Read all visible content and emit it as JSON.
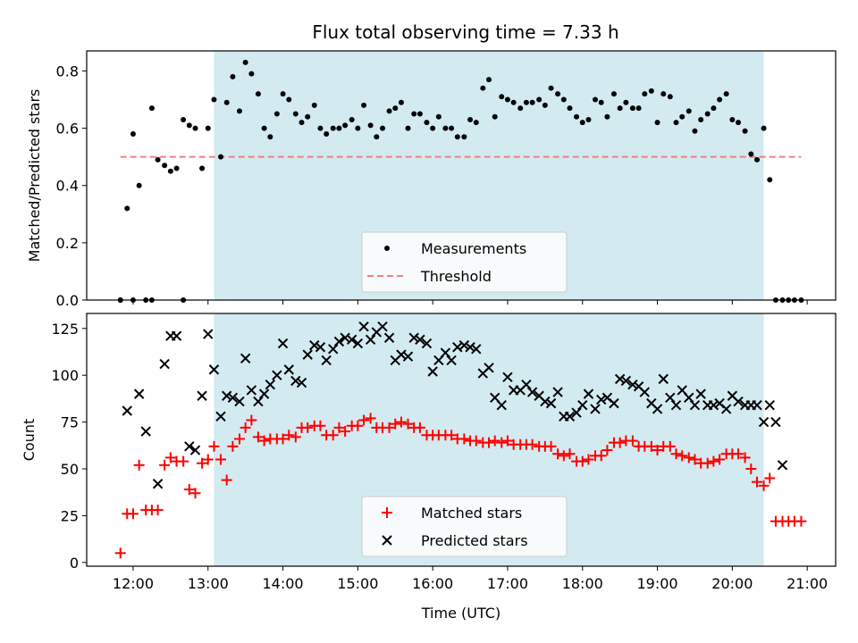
{
  "chart_data": [
    {
      "type": "scatter",
      "title": "Flux total observing time = 7.33 h",
      "ylabel": "Matched/Predicted stars",
      "xlabel": "",
      "xlim_hours": [
        11.38,
        21.38
      ],
      "ylim": [
        0,
        0.87
      ],
      "yticks": [
        0,
        0.2,
        0.4,
        0.6,
        0.8
      ],
      "ytick_labels": [
        "0.0",
        "0.2",
        "0.4",
        "0.6",
        "0.8"
      ],
      "shaded_region_hours": [
        13.08,
        20.42
      ],
      "shaded_color": "#d4eaf1",
      "legend_position": "lower center",
      "series": [
        {
          "name": "Measurements",
          "marker": "dot",
          "color": "#000000",
          "x": [
            11.83,
            11.92,
            12.0,
            12.08,
            12.17,
            12.25,
            12.33,
            12.42,
            12.5,
            12.58,
            12.67,
            12.75,
            12.83,
            12.92,
            13.0,
            13.08,
            13.17,
            13.25,
            13.33,
            13.42,
            13.5,
            13.58,
            13.67,
            13.75,
            13.83,
            13.92,
            14.0,
            14.08,
            14.17,
            14.25,
            14.33,
            14.42,
            14.5,
            14.58,
            14.67,
            14.75,
            14.83,
            14.92,
            15.0,
            15.08,
            15.17,
            15.25,
            15.33,
            15.42,
            15.5,
            15.58,
            15.67,
            15.75,
            15.83,
            15.92,
            16.0,
            16.08,
            16.17,
            16.25,
            16.33,
            16.42,
            16.5,
            16.58,
            16.67,
            16.75,
            16.83,
            16.92,
            17.0,
            17.08,
            17.17,
            17.25,
            17.33,
            17.42,
            17.5,
            17.58,
            17.67,
            17.75,
            17.83,
            17.92,
            18.0,
            18.08,
            18.17,
            18.25,
            18.33,
            18.42,
            18.5,
            18.58,
            18.67,
            18.75,
            18.83,
            18.92,
            19.0,
            19.08,
            19.17,
            19.25,
            19.33,
            19.42,
            19.5,
            19.58,
            19.67,
            19.75,
            19.83,
            19.92,
            20.0,
            20.08,
            20.17,
            20.25,
            20.33,
            20.42,
            20.5,
            20.58,
            20.67,
            20.75,
            20.83,
            20.92,
            11.83,
            12.0,
            12.25,
            12.67
          ],
          "y": [
            0.0,
            0.32,
            0.58,
            0.4,
            0.0,
            0.67,
            0.49,
            0.47,
            0.45,
            0.46,
            0.63,
            0.61,
            0.6,
            0.46,
            0.6,
            0.7,
            0.5,
            0.69,
            0.78,
            0.66,
            0.83,
            0.79,
            0.72,
            0.6,
            0.57,
            0.65,
            0.72,
            0.7,
            0.65,
            0.62,
            0.64,
            0.68,
            0.6,
            0.58,
            0.6,
            0.6,
            0.61,
            0.63,
            0.6,
            0.68,
            0.61,
            0.57,
            0.6,
            0.66,
            0.67,
            0.69,
            0.6,
            0.65,
            0.65,
            0.62,
            0.6,
            0.64,
            0.6,
            0.6,
            0.57,
            0.57,
            0.63,
            0.62,
            0.74,
            0.77,
            0.64,
            0.71,
            0.7,
            0.69,
            0.67,
            0.69,
            0.69,
            0.7,
            0.68,
            0.74,
            0.72,
            0.7,
            0.67,
            0.64,
            0.62,
            0.63,
            0.7,
            0.69,
            0.64,
            0.72,
            0.67,
            0.69,
            0.67,
            0.67,
            0.72,
            0.73,
            0.62,
            0.72,
            0.71,
            0.62,
            0.64,
            0.66,
            0.59,
            0.63,
            0.65,
            0.67,
            0.7,
            0.72,
            0.63,
            0.62,
            0.59,
            0.51,
            0.49,
            0.6,
            0.42,
            0.0,
            0.0,
            0.0,
            0.0,
            0.0,
            0.0,
            0.0,
            0.0,
            0.0
          ]
        },
        {
          "name": "Threshold",
          "marker": "dashed-line",
          "color": "#f08080",
          "x": [
            11.83,
            20.92
          ],
          "y": [
            0.5,
            0.5
          ]
        }
      ]
    },
    {
      "type": "scatter",
      "title": "",
      "ylabel": "Count",
      "xlabel": "Time (UTC)",
      "xlim_hours": [
        11.38,
        21.38
      ],
      "ylim": [
        -2,
        133
      ],
      "yticks": [
        0,
        25,
        50,
        75,
        100,
        125
      ],
      "ytick_labels": [
        "0",
        "25",
        "50",
        "75",
        "100",
        "125"
      ],
      "xticks_hours": [
        12,
        13,
        14,
        15,
        16,
        17,
        18,
        19,
        20,
        21
      ],
      "xtick_labels": [
        "12:00",
        "13:00",
        "14:00",
        "15:00",
        "16:00",
        "17:00",
        "18:00",
        "19:00",
        "20:00",
        "21:00"
      ],
      "shaded_region_hours": [
        13.08,
        20.42
      ],
      "shaded_color": "#d4eaf1",
      "legend_position": "lower center",
      "series": [
        {
          "name": "Matched stars",
          "marker": "plus",
          "color": "#ff0000",
          "x": [
            11.83,
            11.92,
            12.0,
            12.08,
            12.17,
            12.25,
            12.33,
            12.42,
            12.5,
            12.58,
            12.67,
            12.75,
            12.83,
            12.92,
            13.0,
            13.08,
            13.17,
            13.25,
            13.33,
            13.42,
            13.5,
            13.58,
            13.67,
            13.75,
            13.83,
            13.92,
            14.0,
            14.08,
            14.17,
            14.25,
            14.33,
            14.42,
            14.5,
            14.58,
            14.67,
            14.75,
            14.83,
            14.92,
            15.0,
            15.08,
            15.17,
            15.25,
            15.33,
            15.42,
            15.5,
            15.58,
            15.67,
            15.75,
            15.83,
            15.92,
            16.0,
            16.08,
            16.17,
            16.25,
            16.33,
            16.42,
            16.5,
            16.58,
            16.67,
            16.75,
            16.83,
            16.92,
            17.0,
            17.08,
            17.17,
            17.25,
            17.33,
            17.42,
            17.5,
            17.58,
            17.67,
            17.75,
            17.83,
            17.92,
            18.0,
            18.08,
            18.17,
            18.25,
            18.33,
            18.42,
            18.5,
            18.58,
            18.67,
            18.75,
            18.83,
            18.92,
            19.0,
            19.08,
            19.17,
            19.25,
            19.33,
            19.42,
            19.5,
            19.58,
            19.67,
            19.75,
            19.83,
            19.92,
            20.0,
            20.08,
            20.17,
            20.25,
            20.33,
            20.42,
            20.5,
            20.58,
            20.67,
            20.75,
            20.83,
            20.92
          ],
          "y": [
            5,
            26,
            26,
            52,
            28,
            28,
            28,
            52,
            56,
            54,
            54,
            39,
            37,
            53,
            55,
            62,
            55,
            44,
            62,
            66,
            72,
            76,
            67,
            65,
            66,
            66,
            66,
            68,
            67,
            72,
            72,
            73,
            73,
            68,
            68,
            72,
            70,
            73,
            73,
            76,
            77,
            72,
            72,
            72,
            74,
            75,
            74,
            72,
            72,
            68,
            68,
            68,
            68,
            68,
            66,
            66,
            65,
            65,
            64,
            64,
            65,
            64,
            65,
            63,
            63,
            63,
            63,
            62,
            62,
            62,
            58,
            57,
            58,
            54,
            54,
            55,
            57,
            57,
            60,
            64,
            64,
            65,
            65,
            62,
            62,
            62,
            60,
            62,
            62,
            58,
            57,
            56,
            55,
            53,
            53,
            54,
            55,
            58,
            58,
            58,
            56,
            50,
            43,
            41,
            45,
            22,
            22,
            22,
            22,
            22
          ],
          "x_extra": [],
          "y_extra": []
        },
        {
          "name": "Predicted stars",
          "marker": "x",
          "color": "#000000",
          "x": [
            11.92,
            12.08,
            12.17,
            12.33,
            12.42,
            12.5,
            12.58,
            12.75,
            12.83,
            12.92,
            13.0,
            13.08,
            13.17,
            13.25,
            13.33,
            13.42,
            13.5,
            13.58,
            13.67,
            13.75,
            13.83,
            13.92,
            14.0,
            14.08,
            14.17,
            14.25,
            14.33,
            14.42,
            14.5,
            14.58,
            14.67,
            14.75,
            14.83,
            14.92,
            15.0,
            15.08,
            15.17,
            15.25,
            15.33,
            15.42,
            15.5,
            15.58,
            15.67,
            15.75,
            15.83,
            15.92,
            16.0,
            16.08,
            16.17,
            16.25,
            16.33,
            16.42,
            16.5,
            16.58,
            16.67,
            16.75,
            16.83,
            16.92,
            17.0,
            17.08,
            17.17,
            17.25,
            17.33,
            17.42,
            17.5,
            17.58,
            17.67,
            17.75,
            17.83,
            17.92,
            18.0,
            18.08,
            18.17,
            18.25,
            18.33,
            18.42,
            18.5,
            18.58,
            18.67,
            18.75,
            18.83,
            18.92,
            19.0,
            19.08,
            19.17,
            19.25,
            19.33,
            19.42,
            19.5,
            19.58,
            19.67,
            19.75,
            19.83,
            19.92,
            20.0,
            20.08,
            20.17,
            20.25,
            20.33,
            20.42,
            20.5,
            20.58,
            20.67
          ],
          "y": [
            81,
            90,
            70,
            42,
            106,
            121,
            121,
            62,
            60,
            89,
            122,
            103,
            78,
            89,
            88,
            86,
            109,
            92,
            86,
            90,
            95,
            100,
            117,
            103,
            97,
            96,
            111,
            116,
            115,
            108,
            114,
            118,
            120,
            119,
            117,
            126,
            119,
            123,
            126,
            120,
            108,
            111,
            110,
            120,
            119,
            117,
            102,
            108,
            112,
            108,
            115,
            116,
            115,
            114,
            101,
            104,
            88,
            84,
            99,
            92,
            92,
            95,
            91,
            89,
            86,
            85,
            91,
            78,
            78,
            80,
            84,
            90,
            82,
            87,
            88,
            85,
            98,
            97,
            95,
            94,
            91,
            85,
            82,
            98,
            88,
            84,
            92,
            88,
            84,
            90,
            84,
            84,
            85,
            82,
            89,
            86,
            84,
            84,
            84,
            75,
            84,
            75,
            52
          ]
        }
      ]
    }
  ]
}
